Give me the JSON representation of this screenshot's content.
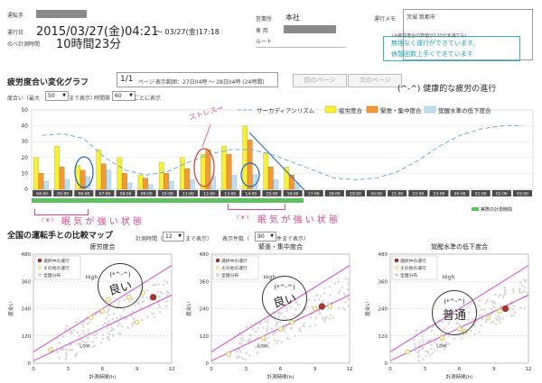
{
  "header": {
    "driver_label": "運転手",
    "date_label": "運行日",
    "total_label": "のべ計測時間",
    "date_value": "2015/03/27(金)04:21",
    "date_end": "〜 03/27(金)17:18",
    "duration": "10時間23分",
    "office_label": "営業所",
    "office_value": "本社",
    "vehicle_label": "車 両",
    "route_label": "ルート",
    "memo_label": "運行メモ",
    "memo_value": "茨城 筑都市",
    "memo_stamp_1": "無理なく運行ができています。",
    "memo_stamp_2": "休憩回数上手くできています",
    "memo_note": "(※疲労度合の数値が120分未満でも)"
  },
  "graph_header": {
    "title": "疲労度合い変化グラフ",
    "page": "1/1",
    "page_unit": "ページ",
    "range": "表示範囲：27日04時 〜 28日04時 (24時間)",
    "prev_label": "前のページ",
    "next_label": "次のページ",
    "handwriting": "(^-^) 健康的な疲労の進行",
    "ymax_label": "度合い（最大",
    "ymax_value": "50",
    "ymax_suffix": "まで表示）",
    "interval_label": "時間帯",
    "interval_value": "60",
    "interval_suffix": "ごとに表示"
  },
  "annotations": {
    "stress_red": "ストレス→",
    "sleepy_1": "眠 気 が 強 い 状 態",
    "sleepy_2": "眠 気 が 強 い 状 態",
    "sleepy_face": "(ᵔᴥᵔ)",
    "actual_time": "実際の計測時間"
  },
  "chart_data": [
    {
      "type": "bar",
      "yticks": [
        0,
        10,
        20,
        30,
        40,
        50
      ],
      "ylim": [
        0,
        50
      ],
      "categories": [
        "04:00",
        "05:00",
        "06:00",
        "07:00",
        "08:00",
        "09:00",
        "10:00",
        "11:00",
        "12:00",
        "13:00",
        "14:00",
        "15:00",
        "16:00",
        "17:00",
        "18:00",
        "19:00",
        "20:00",
        "21:00",
        "22:00",
        "23:00",
        "00:00",
        "01:00",
        "02:00",
        "03:00"
      ],
      "legend": [
        "サーカディアンリズム",
        "疲労度合",
        "緊張・集中度合",
        "覚醒水準の低下度合"
      ],
      "series": [
        {
          "name": "疲労度合",
          "values": [
            20,
            27,
            15,
            25,
            20,
            9,
            17,
            20,
            22,
            27,
            40,
            23,
            14,
            0,
            0,
            0,
            0,
            0,
            0,
            0,
            0,
            0,
            0,
            0
          ]
        },
        {
          "name": "緊張・集中度合",
          "values": [
            10,
            14,
            12,
            16,
            10,
            7,
            10,
            13,
            25,
            22,
            31,
            14,
            9,
            0,
            0,
            0,
            0,
            0,
            0,
            0,
            0,
            0,
            0,
            0
          ]
        },
        {
          "name": "覚醒水準の低下度合",
          "values": [
            5,
            6,
            8,
            12,
            4,
            3,
            5,
            6,
            8,
            9,
            9,
            6,
            4,
            0,
            0,
            0,
            0,
            0,
            0,
            0,
            0,
            0,
            0,
            0
          ]
        },
        {
          "name": "サーカディアンリズム",
          "values": [
            34,
            35,
            32,
            20,
            12,
            9,
            11,
            17,
            22,
            25,
            25,
            22,
            17,
            12,
            7,
            6,
            7,
            11,
            18,
            27,
            34,
            38,
            40,
            40
          ]
        }
      ]
    },
    {
      "type": "scatter",
      "title": "疲労度合",
      "xlabel": "計測時間(h)",
      "ylabel": "度合い",
      "xticks": [
        0,
        3,
        6,
        9,
        12
      ],
      "yticks": [
        0,
        120,
        240,
        360,
        480
      ],
      "ylim": [
        0,
        480
      ],
      "xlim": [
        0,
        12
      ],
      "legend": [
        "選択中の運行",
        "その他の運行",
        "全国分布"
      ],
      "zones": [
        "High",
        "Low"
      ],
      "selected": [
        [
          10.4,
          290
        ]
      ],
      "others": [
        [
          1.5,
          60
        ],
        [
          5.0,
          200
        ],
        [
          6.0,
          230
        ],
        [
          6.5,
          280
        ],
        [
          8.3,
          290
        ],
        [
          9.5,
          310
        ],
        [
          9.0,
          180
        ]
      ]
    },
    {
      "type": "scatter",
      "title": "緊張・集中度合",
      "xlabel": "計測時間(h)",
      "ylabel": "度合い",
      "xticks": [
        0,
        3,
        6,
        9,
        12
      ],
      "yticks": [
        0,
        120,
        240,
        360,
        480
      ],
      "ylim": [
        0,
        480
      ],
      "xlim": [
        0,
        12
      ],
      "legend": [
        "選択中の運行",
        "その他の運行",
        "全国分布"
      ],
      "zones": [
        "High",
        "Low"
      ],
      "selected": [
        [
          9.6,
          250
        ]
      ],
      "others": [
        [
          1.5,
          40
        ],
        [
          4.5,
          110
        ],
        [
          6.0,
          150
        ],
        [
          7.0,
          180
        ],
        [
          9.0,
          240
        ],
        [
          10.3,
          250
        ]
      ]
    },
    {
      "type": "scatter",
      "title": "覚醒水準の低下度合",
      "xlabel": "計測時間(h)",
      "ylabel": "度合い",
      "xticks": [
        0,
        3,
        6,
        9,
        12
      ],
      "yticks": [
        0,
        120,
        240,
        360,
        480
      ],
      "ylim": [
        0,
        480
      ],
      "xlim": [
        0,
        12
      ],
      "legend": [
        "選択中の運行",
        "その他の運行",
        "全国分布"
      ],
      "zones": [
        "High",
        "Low"
      ],
      "selected": [
        [
          10.0,
          240
        ]
      ],
      "others": [
        [
          1.5,
          50
        ],
        [
          4.5,
          110
        ],
        [
          6.0,
          150
        ],
        [
          6.5,
          140
        ],
        [
          8.5,
          200
        ],
        [
          9.5,
          230
        ]
      ]
    }
  ],
  "compare": {
    "title": "全国の運転手との比較マップ",
    "hours_label": "計測時間（",
    "hours_value": "12",
    "hours_suffix": "まで表示）",
    "days_label": "表示件数（",
    "days_value": "90",
    "days_suffix": "件まで表示）",
    "stamp_1": "良い",
    "stamp_2": "良い",
    "stamp_3": "普通",
    "face": "(*^-^)"
  }
}
